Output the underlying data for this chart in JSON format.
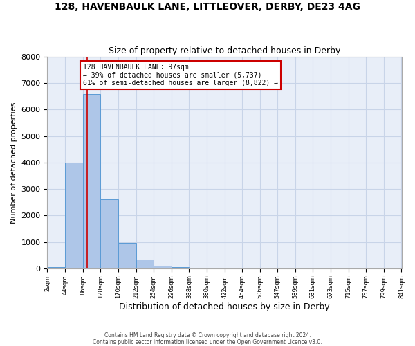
{
  "title": "128, HAVENBAULK LANE, LITTLEOVER, DERBY, DE23 4AG",
  "subtitle": "Size of property relative to detached houses in Derby",
  "xlabel": "Distribution of detached houses by size in Derby",
  "ylabel": "Number of detached properties",
  "property_size": 97,
  "property_label": "128 HAVENBAULK LANE: 97sqm",
  "pct_smaller": 39,
  "count_smaller": 5737,
  "pct_larger_semi": 61,
  "count_larger_semi": 8822,
  "bin_edges": [
    2,
    44,
    86,
    128,
    170,
    212,
    254,
    296,
    338,
    380,
    422,
    464,
    506,
    547,
    589,
    631,
    673,
    715,
    757,
    799,
    841
  ],
  "bar_heights": [
    50,
    4000,
    6600,
    2600,
    950,
    320,
    100,
    50,
    0,
    0,
    0,
    0,
    0,
    0,
    0,
    0,
    0,
    0,
    0,
    0
  ],
  "bar_color": "#aec6e8",
  "bar_edge_color": "#5b9bd5",
  "line_color": "#cc0000",
  "annotation_box_edge": "#cc0000",
  "grid_color": "#c8d4e8",
  "bg_color": "#e8eef8",
  "ylim": [
    0,
    8000
  ],
  "yticks": [
    0,
    1000,
    2000,
    3000,
    4000,
    5000,
    6000,
    7000,
    8000
  ],
  "footer_line1": "Contains HM Land Registry data © Crown copyright and database right 2024.",
  "footer_line2": "Contains public sector information licensed under the Open Government Licence v3.0."
}
